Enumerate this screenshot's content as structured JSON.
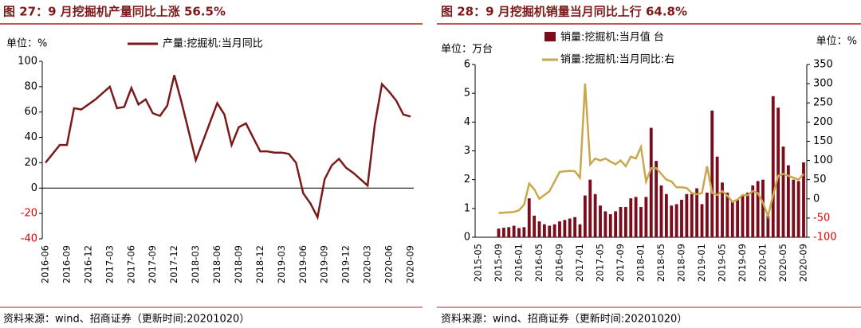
{
  "chart_data": [
    {
      "type": "line",
      "title": "图 27：9 月挖掘机产量同比上涨 56.5%",
      "unit_label": "单位：%",
      "source": "资料来源：wind、招商证券（更新时间:20201020）",
      "categories": [
        "2016-06",
        null,
        null,
        "2016-09",
        null,
        null,
        "2016-12",
        null,
        null,
        "2017-03",
        null,
        null,
        "2017-06",
        null,
        null,
        "2017-09",
        null,
        null,
        "2017-12",
        null,
        null,
        "2018-03",
        null,
        null,
        "2018-06",
        null,
        null,
        "2018-09",
        null,
        null,
        "2018-12",
        null,
        null,
        "2019-03",
        null,
        null,
        "2019-06",
        null,
        null,
        "2019-09",
        null,
        null,
        "2019-12",
        null,
        null,
        "2020-03",
        null,
        null,
        "2020-06",
        null,
        null,
        "2020-09"
      ],
      "series": [
        {
          "name": "产量:挖掘机:当月同比",
          "color": "#7b1a1a",
          "values": [
            20,
            27,
            34,
            34,
            63,
            62,
            66,
            70,
            75,
            80,
            63,
            64,
            79,
            66,
            70,
            59,
            57,
            65,
            89,
            68,
            45,
            22,
            37,
            52,
            67,
            58,
            34,
            48,
            51,
            40,
            29,
            29,
            28,
            28,
            27,
            20,
            -4,
            -12,
            -23,
            7,
            18,
            23,
            16,
            12,
            7,
            2,
            50,
            82,
            76,
            69,
            58,
            56.5
          ]
        }
      ],
      "ylim": [
        -40,
        100
      ],
      "yticks": [
        -40,
        -20,
        0,
        20,
        40,
        60,
        80,
        100
      ],
      "negative_tick_color": "#e00000",
      "grid": false
    },
    {
      "type": "bar_line",
      "title": "图 28：9 月挖掘机销量当月同比上行 64.8%",
      "unit_label": "单位：万台",
      "unit_label_y2": "单位：%",
      "source": "资料来源：wind、招商证券（更新时间:20201020）",
      "categories": [
        "2015-05",
        null,
        null,
        null,
        "2015-09",
        null,
        null,
        null,
        "2016-01",
        null,
        null,
        null,
        "2016-05",
        null,
        null,
        null,
        "2016-09",
        null,
        null,
        null,
        "2017-01",
        null,
        null,
        null,
        "2017-05",
        null,
        null,
        null,
        "2017-09",
        null,
        null,
        null,
        "2018-01",
        null,
        null,
        null,
        "2018-05",
        null,
        null,
        null,
        "2018-09",
        null,
        null,
        null,
        "2019-01",
        null,
        null,
        null,
        "2019-05",
        null,
        null,
        null,
        "2019-09",
        null,
        null,
        null,
        "2020-01",
        null,
        null,
        null,
        "2020-05",
        null,
        null,
        null,
        "2020-09"
      ],
      "series": [
        {
          "name": "销量:挖掘机:当月值 台",
          "color": "#7b0c1c",
          "values": [
            null,
            null,
            null,
            null,
            0.3,
            0.33,
            0.35,
            0.4,
            0.32,
            0.35,
            1.35,
            0.75,
            0.55,
            0.45,
            0.4,
            0.45,
            0.55,
            0.6,
            0.65,
            0.7,
            0.45,
            1.45,
            2.0,
            1.5,
            1.1,
            0.9,
            0.8,
            0.9,
            1.05,
            1.05,
            1.35,
            1.4,
            1.05,
            1.4,
            3.8,
            2.65,
            1.8,
            1.5,
            1.1,
            1.15,
            1.3,
            1.5,
            1.5,
            1.7,
            1.15,
            1.55,
            4.4,
            2.8,
            1.9,
            1.55,
            1.25,
            1.3,
            1.45,
            1.55,
            1.8,
            1.95,
            2.0,
            0.75,
            4.9,
            4.5,
            3.15,
            2.5,
            2.0,
            1.95,
            2.6
          ]
        },
        {
          "name": "销量:挖掘机:当月同比:右",
          "color": "#c8a84b",
          "axis": "y2",
          "values": [
            null,
            null,
            null,
            null,
            -37,
            -36,
            -35,
            -34,
            -30,
            -15,
            40,
            25,
            0,
            10,
            20,
            45,
            70,
            72,
            73,
            72,
            55,
            300,
            90,
            105,
            100,
            105,
            97,
            90,
            100,
            85,
            110,
            105,
            135,
            45,
            80,
            80,
            65,
            50,
            45,
            30,
            30,
            28,
            15,
            12,
            15,
            85,
            15,
            10,
            20,
            8,
            -8,
            -2,
            10,
            10,
            20,
            15,
            -10,
            -45,
            10,
            60,
            65,
            60,
            55,
            50,
            64.8
          ]
        }
      ],
      "ylim": [
        0,
        6
      ],
      "yticks": [
        0,
        1,
        2,
        3,
        4,
        5,
        6
      ],
      "y2lim": [
        -100,
        350
      ],
      "y2ticks": [
        -100,
        -50,
        0,
        50,
        100,
        150,
        200,
        250,
        300,
        350
      ],
      "negative_tick_color": "#e00000",
      "grid": false
    }
  ]
}
